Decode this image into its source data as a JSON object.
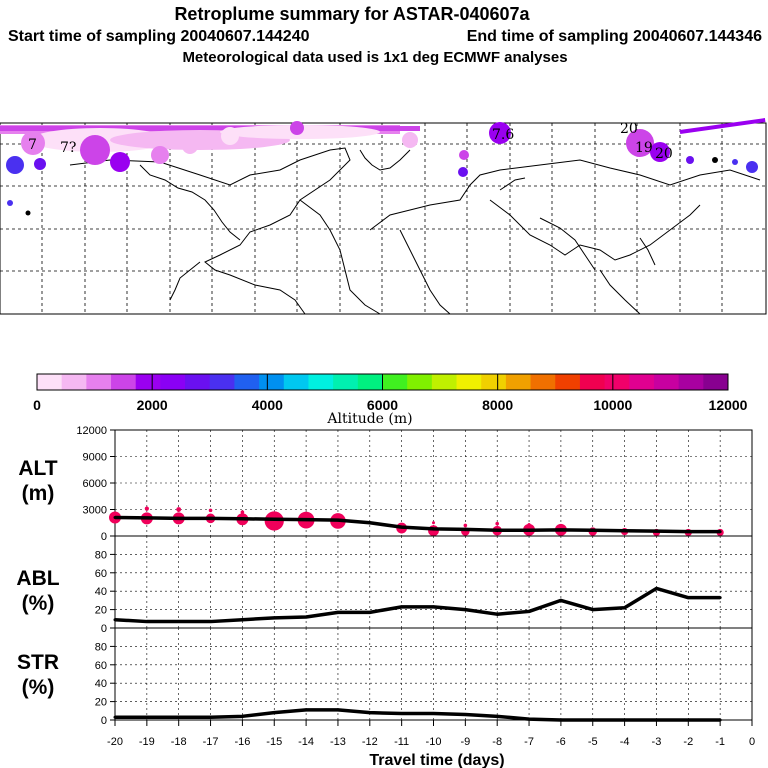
{
  "header": {
    "title": "Retroplume summary for ASTAR-040607a",
    "start": "Start time of sampling 20040607.144240",
    "end": "End time of sampling 20040607.144346",
    "met": "Meteorological data used is 1x1 deg ECMWF analyses"
  },
  "colorbar": {
    "label": "Altitude (m)",
    "ticks": [
      "0",
      "2000",
      "4000",
      "6000",
      "8000",
      "10000",
      "12000"
    ],
    "colors": [
      "#fde0f8",
      "#f5b8f2",
      "#e680ee",
      "#cc44e8",
      "#9a00f0",
      "#8a00f5",
      "#6a10f0",
      "#4a30f0",
      "#2060f0",
      "#0090f0",
      "#00c8f0",
      "#00f0e0",
      "#00f0b0",
      "#00f080",
      "#40f020",
      "#80f000",
      "#c0f000",
      "#f0f000",
      "#f0d000",
      "#f0a000",
      "#f07000",
      "#f04000",
      "#f00050",
      "#f0006a",
      "#e00090",
      "#c800a0",
      "#a800a0",
      "#880090"
    ]
  },
  "panels": {
    "alt": {
      "label1": "ALT",
      "label2": "(m)"
    },
    "abl": {
      "label1": "ABL",
      "label2": "(%)"
    },
    "str": {
      "label1": "STR",
      "label2": "(%)"
    }
  },
  "map_labels": [
    "7",
    "20",
    "19",
    "20",
    "7.6",
    "7?"
  ],
  "chart_data": [
    {
      "type": "line",
      "title": "ALT",
      "ylabel": "(m)",
      "xlabel": "Travel time (days)",
      "x": [
        -20,
        -19,
        -18,
        -17,
        -16,
        -15,
        -14,
        -13,
        -12,
        -11,
        -10,
        -9,
        -8,
        -7,
        -6,
        -5,
        -4,
        -3,
        -2,
        -1
      ],
      "values": [
        2100,
        2050,
        2000,
        2000,
        1950,
        1900,
        1850,
        1800,
        1500,
        1000,
        800,
        750,
        650,
        650,
        700,
        650,
        600,
        550,
        500,
        500
      ],
      "ylim": [
        0,
        12000
      ],
      "yticks": [
        "0",
        "3000",
        "6000",
        "9000",
        "12000"
      ],
      "bubbles": [
        {
          "x": -20,
          "y": 2100,
          "s": 1
        },
        {
          "x": -19,
          "y": 2000,
          "s": 1
        },
        {
          "x": -18,
          "y": 2000,
          "s": 1
        },
        {
          "x": -17,
          "y": 2000,
          "s": 0.8
        },
        {
          "x": -16,
          "y": 1900,
          "s": 1
        },
        {
          "x": -15,
          "y": 1700,
          "s": 1.6
        },
        {
          "x": -14,
          "y": 1800,
          "s": 1.4
        },
        {
          "x": -13,
          "y": 1700,
          "s": 1.3
        },
        {
          "x": -11,
          "y": 900,
          "s": 0.9
        },
        {
          "x": -10,
          "y": 600,
          "s": 0.9
        },
        {
          "x": -9,
          "y": 500,
          "s": 0.7
        },
        {
          "x": -8,
          "y": 600,
          "s": 0.8
        },
        {
          "x": -7,
          "y": 700,
          "s": 1
        },
        {
          "x": -6,
          "y": 700,
          "s": 1
        },
        {
          "x": -5,
          "y": 500,
          "s": 0.7
        },
        {
          "x": -4,
          "y": 500,
          "s": 0.6
        },
        {
          "x": -3,
          "y": 400,
          "s": 0.6
        },
        {
          "x": -2,
          "y": 400,
          "s": 0.6
        },
        {
          "x": -1,
          "y": 400,
          "s": 0.6
        },
        {
          "x": -19,
          "y": 3100,
          "s": 0.35
        },
        {
          "x": -18,
          "y": 3000,
          "s": 0.4
        },
        {
          "x": -17,
          "y": 2900,
          "s": 0.3
        },
        {
          "x": -16,
          "y": 2700,
          "s": 0.3
        },
        {
          "x": -10,
          "y": 1500,
          "s": 0.25
        },
        {
          "x": -9,
          "y": 1200,
          "s": 0.3
        },
        {
          "x": -8,
          "y": 1400,
          "s": 0.3
        },
        {
          "x": -7,
          "y": 1300,
          "s": 0.25
        }
      ]
    },
    {
      "type": "line",
      "title": "ABL",
      "ylabel": "(%)",
      "x": [
        -20,
        -19,
        -18,
        -17,
        -16,
        -15,
        -14,
        -13,
        -12,
        -11,
        -10,
        -9,
        -8,
        -7,
        -6,
        -5,
        -4,
        -3,
        -2,
        -1
      ],
      "values": [
        9,
        7,
        7,
        7,
        9,
        11,
        12,
        17,
        17,
        23,
        23,
        20,
        15,
        18,
        30,
        20,
        22,
        43,
        33,
        33
      ],
      "ylim": [
        0,
        100
      ],
      "yticks": [
        "0",
        "20",
        "40",
        "60",
        "80"
      ]
    },
    {
      "type": "line",
      "title": "STR",
      "ylabel": "(%)",
      "x": [
        -20,
        -19,
        -18,
        -17,
        -16,
        -15,
        -14,
        -13,
        -12,
        -11,
        -10,
        -9,
        -8,
        -7,
        -6,
        -5,
        -4,
        -3,
        -2,
        -1
      ],
      "values": [
        3,
        3,
        3,
        3,
        4,
        8,
        11,
        11,
        8,
        7,
        7,
        6,
        4,
        1,
        0,
        0,
        0,
        0,
        0,
        0
      ],
      "ylim": [
        0,
        100
      ],
      "yticks": [
        "0",
        "20",
        "40",
        "60",
        "80"
      ]
    }
  ],
  "xaxis": {
    "ticks": [
      "-20",
      "-19",
      "-18",
      "-17",
      "-16",
      "-15",
      "-14",
      "-13",
      "-12",
      "-11",
      "-10",
      "-9",
      "-8",
      "-7",
      "-6",
      "-5",
      "-4",
      "-3",
      "-2",
      "-1",
      "0"
    ],
    "label": "Travel time (days)"
  }
}
